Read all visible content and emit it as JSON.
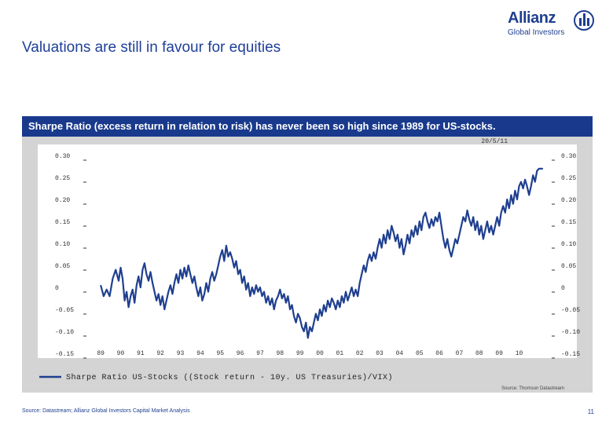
{
  "slide": {
    "title": "Valuations are still in favour for equities",
    "banner": "Sharpe Ratio (excess return in relation to risk) has never been so high since 1989 for US-stocks.",
    "source": "Source: Datastream; Allianz Global Investors Capital Market Analysis",
    "page_number": "11"
  },
  "logo": {
    "brand": "Allianz",
    "sub": "Global Investors",
    "icon": "allianz-eagle-icon"
  },
  "chart_data": {
    "type": "line",
    "date_stamp": "20/5/11",
    "ylim": [
      -0.15,
      0.3
    ],
    "y_ticks": [
      {
        "value": 0.3,
        "label": "0.30"
      },
      {
        "value": 0.25,
        "label": "0.25"
      },
      {
        "value": 0.2,
        "label": "0.20"
      },
      {
        "value": 0.15,
        "label": "0.15"
      },
      {
        "value": 0.1,
        "label": "0.10"
      },
      {
        "value": 0.05,
        "label": "0.05"
      },
      {
        "value": 0,
        "label": "0"
      },
      {
        "value": -0.05,
        "label": "-0.05"
      },
      {
        "value": -0.1,
        "label": "-0.10"
      },
      {
        "value": -0.15,
        "label": "-0.15"
      }
    ],
    "xlim": [
      1988.6,
      2011.4
    ],
    "x_ticks": [
      {
        "value": 1989,
        "label": "89"
      },
      {
        "value": 1990,
        "label": "90"
      },
      {
        "value": 1991,
        "label": "91"
      },
      {
        "value": 1992,
        "label": "92"
      },
      {
        "value": 1993,
        "label": "93"
      },
      {
        "value": 1994,
        "label": "94"
      },
      {
        "value": 1995,
        "label": "95"
      },
      {
        "value": 1996,
        "label": "96"
      },
      {
        "value": 1997,
        "label": "97"
      },
      {
        "value": 1998,
        "label": "98"
      },
      {
        "value": 1999,
        "label": "99"
      },
      {
        "value": 2000,
        "label": "00"
      },
      {
        "value": 2001,
        "label": "01"
      },
      {
        "value": 2002,
        "label": "02"
      },
      {
        "value": 2003,
        "label": "03"
      },
      {
        "value": 2004,
        "label": "04"
      },
      {
        "value": 2005,
        "label": "05"
      },
      {
        "value": 2006,
        "label": "06"
      },
      {
        "value": 2007,
        "label": "07"
      },
      {
        "value": 2008,
        "label": "08"
      },
      {
        "value": 2009,
        "label": "09"
      },
      {
        "value": 2010,
        "label": "10"
      }
    ],
    "legend_position": "bottom-left",
    "series": [
      {
        "name": "Sharpe Ratio US-Stocks ((Stock return - 10y. US Treasuries)/VIX)",
        "color": "#1f3f8f",
        "points": [
          [
            1989.0,
            0.005
          ],
          [
            1989.15,
            -0.02
          ],
          [
            1989.3,
            -0.005
          ],
          [
            1989.45,
            -0.02
          ],
          [
            1989.6,
            0.02
          ],
          [
            1989.75,
            0.04
          ],
          [
            1989.9,
            0.015
          ],
          [
            1990.0,
            0.045
          ],
          [
            1990.1,
            0.02
          ],
          [
            1990.2,
            -0.03
          ],
          [
            1990.3,
            -0.01
          ],
          [
            1990.4,
            -0.045
          ],
          [
            1990.5,
            -0.02
          ],
          [
            1990.6,
            -0.005
          ],
          [
            1990.7,
            -0.035
          ],
          [
            1990.8,
            0.005
          ],
          [
            1990.9,
            0.025
          ],
          [
            1991.0,
            0.0
          ],
          [
            1991.1,
            0.04
          ],
          [
            1991.2,
            0.055
          ],
          [
            1991.3,
            0.03
          ],
          [
            1991.4,
            0.015
          ],
          [
            1991.5,
            0.035
          ],
          [
            1991.6,
            0.01
          ],
          [
            1991.7,
            -0.01
          ],
          [
            1991.8,
            -0.03
          ],
          [
            1991.9,
            -0.015
          ],
          [
            1992.0,
            -0.04
          ],
          [
            1992.1,
            -0.02
          ],
          [
            1992.2,
            -0.05
          ],
          [
            1992.3,
            -0.03
          ],
          [
            1992.4,
            -0.01
          ],
          [
            1992.5,
            0.005
          ],
          [
            1992.6,
            -0.015
          ],
          [
            1992.7,
            0.01
          ],
          [
            1992.8,
            0.03
          ],
          [
            1992.9,
            0.01
          ],
          [
            1993.0,
            0.04
          ],
          [
            1993.1,
            0.02
          ],
          [
            1993.2,
            0.045
          ],
          [
            1993.3,
            0.025
          ],
          [
            1993.4,
            0.05
          ],
          [
            1993.5,
            0.03
          ],
          [
            1993.6,
            0.01
          ],
          [
            1993.7,
            0.025
          ],
          [
            1993.8,
            0.0
          ],
          [
            1993.9,
            -0.02
          ],
          [
            1994.0,
            0.0
          ],
          [
            1994.1,
            -0.03
          ],
          [
            1994.2,
            -0.015
          ],
          [
            1994.3,
            0.01
          ],
          [
            1994.4,
            -0.01
          ],
          [
            1994.5,
            0.02
          ],
          [
            1994.6,
            0.035
          ],
          [
            1994.7,
            0.015
          ],
          [
            1994.8,
            0.03
          ],
          [
            1994.9,
            0.05
          ],
          [
            1995.0,
            0.07
          ],
          [
            1995.1,
            0.085
          ],
          [
            1995.2,
            0.06
          ],
          [
            1995.3,
            0.095
          ],
          [
            1995.4,
            0.07
          ],
          [
            1995.5,
            0.08
          ],
          [
            1995.6,
            0.065
          ],
          [
            1995.7,
            0.045
          ],
          [
            1995.8,
            0.06
          ],
          [
            1995.9,
            0.03
          ],
          [
            1996.0,
            0.04
          ],
          [
            1996.1,
            0.01
          ],
          [
            1996.2,
            0.025
          ],
          [
            1996.3,
            -0.005
          ],
          [
            1996.4,
            0.01
          ],
          [
            1996.5,
            -0.02
          ],
          [
            1996.6,
            0.0
          ],
          [
            1996.7,
            -0.015
          ],
          [
            1996.8,
            0.005
          ],
          [
            1996.9,
            -0.01
          ],
          [
            1997.0,
            0.0
          ],
          [
            1997.1,
            -0.02
          ],
          [
            1997.2,
            -0.01
          ],
          [
            1997.3,
            -0.035
          ],
          [
            1997.4,
            -0.02
          ],
          [
            1997.5,
            -0.04
          ],
          [
            1997.6,
            -0.025
          ],
          [
            1997.7,
            -0.05
          ],
          [
            1997.8,
            -0.03
          ],
          [
            1997.9,
            -0.02
          ],
          [
            1998.0,
            -0.005
          ],
          [
            1998.1,
            -0.025
          ],
          [
            1998.2,
            -0.015
          ],
          [
            1998.3,
            -0.035
          ],
          [
            1998.4,
            -0.02
          ],
          [
            1998.5,
            -0.05
          ],
          [
            1998.6,
            -0.04
          ],
          [
            1998.7,
            -0.065
          ],
          [
            1998.8,
            -0.08
          ],
          [
            1998.9,
            -0.06
          ],
          [
            1999.0,
            -0.07
          ],
          [
            1999.1,
            -0.09
          ],
          [
            1999.2,
            -0.1
          ],
          [
            1999.3,
            -0.08
          ],
          [
            1999.4,
            -0.115
          ],
          [
            1999.5,
            -0.09
          ],
          [
            1999.6,
            -0.1
          ],
          [
            1999.7,
            -0.08
          ],
          [
            1999.8,
            -0.06
          ],
          [
            1999.9,
            -0.075
          ],
          [
            2000.0,
            -0.05
          ],
          [
            2000.1,
            -0.065
          ],
          [
            2000.2,
            -0.04
          ],
          [
            2000.3,
            -0.055
          ],
          [
            2000.4,
            -0.03
          ],
          [
            2000.5,
            -0.045
          ],
          [
            2000.6,
            -0.025
          ],
          [
            2000.7,
            -0.035
          ],
          [
            2000.8,
            -0.05
          ],
          [
            2000.9,
            -0.03
          ],
          [
            2001.0,
            -0.045
          ],
          [
            2001.1,
            -0.02
          ],
          [
            2001.2,
            -0.035
          ],
          [
            2001.3,
            -0.01
          ],
          [
            2001.4,
            -0.03
          ],
          [
            2001.5,
            -0.015
          ],
          [
            2001.6,
            0.0
          ],
          [
            2001.7,
            -0.02
          ],
          [
            2001.8,
            -0.005
          ],
          [
            2001.9,
            -0.02
          ],
          [
            2002.0,
            0.01
          ],
          [
            2002.1,
            0.03
          ],
          [
            2002.2,
            0.05
          ],
          [
            2002.3,
            0.035
          ],
          [
            2002.4,
            0.06
          ],
          [
            2002.5,
            0.075
          ],
          [
            2002.6,
            0.06
          ],
          [
            2002.7,
            0.08
          ],
          [
            2002.8,
            0.065
          ],
          [
            2002.9,
            0.09
          ],
          [
            2003.0,
            0.11
          ],
          [
            2003.1,
            0.09
          ],
          [
            2003.2,
            0.12
          ],
          [
            2003.3,
            0.1
          ],
          [
            2003.4,
            0.13
          ],
          [
            2003.5,
            0.11
          ],
          [
            2003.6,
            0.14
          ],
          [
            2003.7,
            0.125
          ],
          [
            2003.8,
            0.105
          ],
          [
            2003.9,
            0.12
          ],
          [
            2004.0,
            0.09
          ],
          [
            2004.1,
            0.11
          ],
          [
            2004.2,
            0.075
          ],
          [
            2004.3,
            0.095
          ],
          [
            2004.4,
            0.12
          ],
          [
            2004.5,
            0.1
          ],
          [
            2004.6,
            0.13
          ],
          [
            2004.7,
            0.115
          ],
          [
            2004.8,
            0.14
          ],
          [
            2004.9,
            0.12
          ],
          [
            2005.0,
            0.15
          ],
          [
            2005.1,
            0.13
          ],
          [
            2005.2,
            0.16
          ],
          [
            2005.3,
            0.17
          ],
          [
            2005.4,
            0.15
          ],
          [
            2005.5,
            0.135
          ],
          [
            2005.6,
            0.155
          ],
          [
            2005.7,
            0.14
          ],
          [
            2005.8,
            0.16
          ],
          [
            2005.9,
            0.15
          ],
          [
            2006.0,
            0.17
          ],
          [
            2006.1,
            0.14
          ],
          [
            2006.2,
            0.11
          ],
          [
            2006.3,
            0.09
          ],
          [
            2006.4,
            0.11
          ],
          [
            2006.5,
            0.085
          ],
          [
            2006.6,
            0.07
          ],
          [
            2006.7,
            0.09
          ],
          [
            2006.8,
            0.11
          ],
          [
            2006.9,
            0.1
          ],
          [
            2007.0,
            0.12
          ],
          [
            2007.1,
            0.14
          ],
          [
            2007.2,
            0.16
          ],
          [
            2007.3,
            0.15
          ],
          [
            2007.4,
            0.175
          ],
          [
            2007.5,
            0.155
          ],
          [
            2007.6,
            0.14
          ],
          [
            2007.7,
            0.16
          ],
          [
            2007.8,
            0.13
          ],
          [
            2007.9,
            0.15
          ],
          [
            2008.0,
            0.12
          ],
          [
            2008.1,
            0.14
          ],
          [
            2008.2,
            0.11
          ],
          [
            2008.3,
            0.13
          ],
          [
            2008.4,
            0.15
          ],
          [
            2008.5,
            0.125
          ],
          [
            2008.6,
            0.14
          ],
          [
            2008.7,
            0.12
          ],
          [
            2008.8,
            0.14
          ],
          [
            2008.9,
            0.16
          ],
          [
            2009.0,
            0.14
          ],
          [
            2009.1,
            0.17
          ],
          [
            2009.2,
            0.185
          ],
          [
            2009.3,
            0.17
          ],
          [
            2009.4,
            0.2
          ],
          [
            2009.5,
            0.18
          ],
          [
            2009.6,
            0.21
          ],
          [
            2009.7,
            0.19
          ],
          [
            2009.8,
            0.22
          ],
          [
            2009.9,
            0.2
          ],
          [
            2010.0,
            0.23
          ],
          [
            2010.1,
            0.24
          ],
          [
            2010.2,
            0.225
          ],
          [
            2010.3,
            0.245
          ],
          [
            2010.4,
            0.23
          ],
          [
            2010.5,
            0.21
          ],
          [
            2010.6,
            0.23
          ],
          [
            2010.7,
            0.255
          ],
          [
            2010.8,
            0.24
          ],
          [
            2010.9,
            0.265
          ],
          [
            2011.0,
            0.27
          ],
          [
            2011.2,
            0.27
          ]
        ]
      }
    ],
    "source_note": "Source: Thomson Datastream"
  }
}
